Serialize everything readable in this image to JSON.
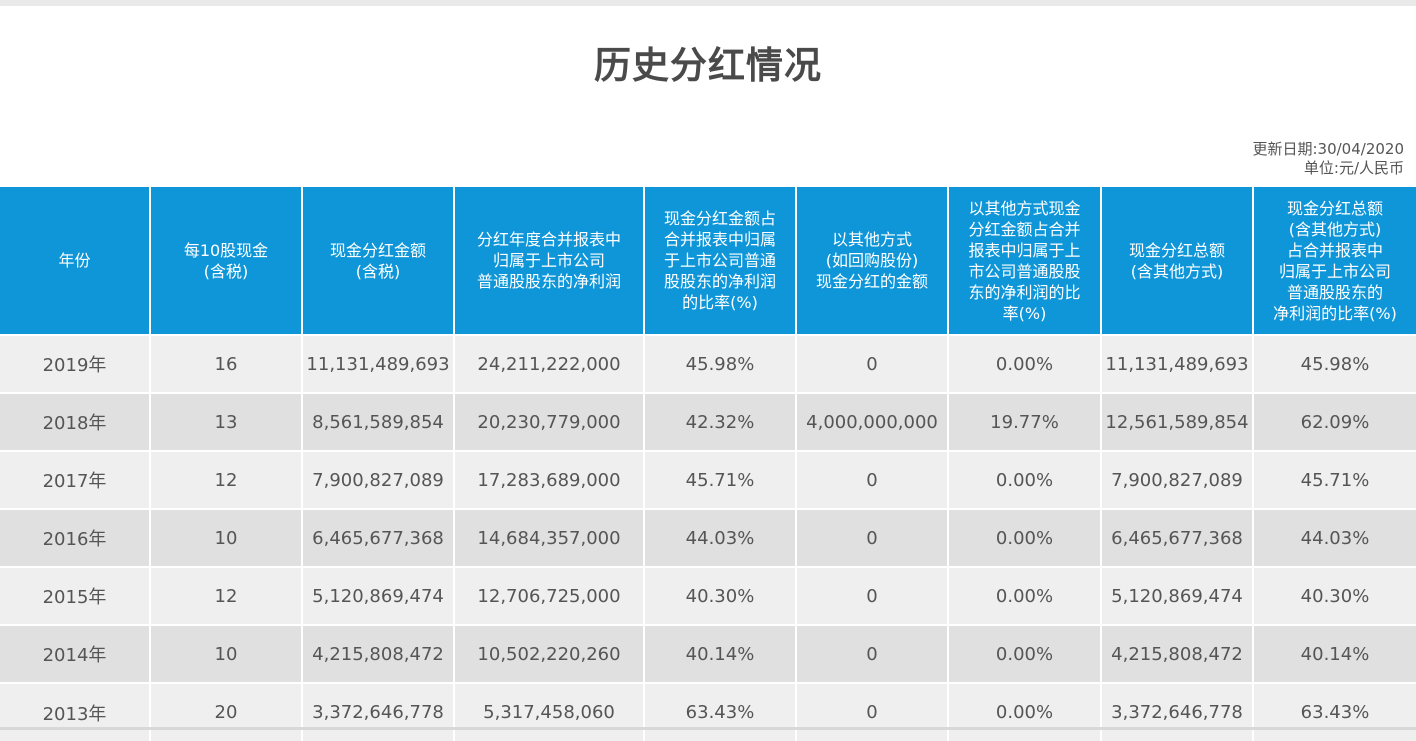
{
  "page": {
    "title": "历史分红情况",
    "update_date": "更新日期:30/04/2020",
    "unit": "单位:元/人民币"
  },
  "table": {
    "headers": [
      "年份",
      "每10股现金\n(含税)",
      "现金分红金额\n(含税)",
      "分红年度合并报表中\n归属于上市公司\n普通股股东的净利润",
      "现金分红金额占\n合并报表中归属\n于上市公司普通\n股股东的净利润\n的比率(%)",
      "以其他方式\n(如回购股份)\n现金分红的金额",
      "以其他方式现金\n分红金额占合并\n报表中归属于上\n市公司普通股股\n东的净利润的比\n率(%)",
      "现金分红总额\n(含其他方式)",
      "现金分红总额\n(含其他方式)\n占合并报表中\n归属于上市公司\n普通股股东的\n净利润的比率(%)"
    ],
    "rows": [
      [
        "2019年",
        "16",
        "11,131,489,693",
        "24,211,222,000",
        "45.98%",
        "0",
        "0.00%",
        "11,131,489,693",
        "45.98%"
      ],
      [
        "2018年",
        "13",
        "8,561,589,854",
        "20,230,779,000",
        "42.32%",
        "4,000,000,000",
        "19.77%",
        "12,561,589,854",
        "62.09%"
      ],
      [
        "2017年",
        "12",
        "7,900,827,089",
        "17,283,689,000",
        "45.71%",
        "0",
        "0.00%",
        "7,900,827,089",
        "45.71%"
      ],
      [
        "2016年",
        "10",
        "6,465,677,368",
        "14,684,357,000",
        "44.03%",
        "0",
        "0.00%",
        "6,465,677,368",
        "44.03%"
      ],
      [
        "2015年",
        "12",
        "5,120,869,474",
        "12,706,725,000",
        "40.30%",
        "0",
        "0.00%",
        "5,120,869,474",
        "40.30%"
      ],
      [
        "2014年",
        "10",
        "4,215,808,472",
        "10,502,220,260",
        "40.14%",
        "0",
        "0.00%",
        "4,215,808,472",
        "40.14%"
      ],
      [
        "2013年",
        "20",
        "3,372,646,778",
        "5,317,458,060",
        "63.43%",
        "0",
        "0.00%",
        "3,372,646,778",
        "63.43%"
      ]
    ]
  },
  "colors": {
    "header_bg": "#0e96d9",
    "row_light": "#efefef",
    "row_dark": "#e0e0e0"
  }
}
